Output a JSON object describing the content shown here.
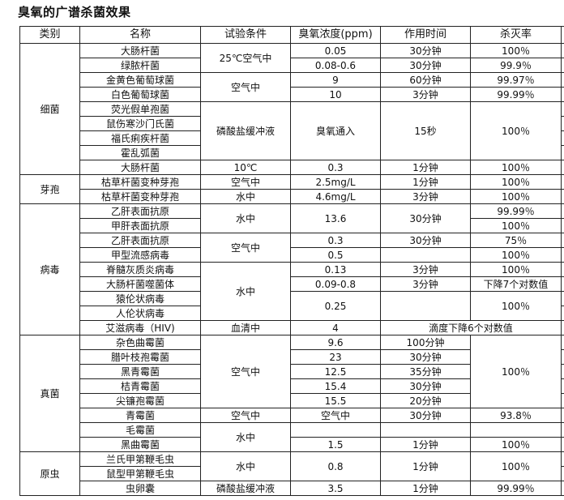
{
  "title": "臭氧的广谱杀菌效果",
  "table": {
    "headers": [
      "类别",
      "名称",
      "试验条件",
      "臭氧浓度(ppm)",
      "作用时间",
      "杀灭率",
      ""
    ],
    "groups": [
      {
        "category": "细菌",
        "rows": [
          [
            {
              "t": "大肠杆菌"
            },
            {
              "t": "25℃空气中",
              "rs": 2
            },
            {
              "t": "0.05"
            },
            {
              "t": "30分钟"
            },
            {
              "t": "100％"
            }
          ],
          [
            {
              "t": "绿脓杆菌"
            },
            {
              "t": "0.08-0.6"
            },
            {
              "t": "30分钟"
            },
            {
              "t": "99.9％"
            }
          ],
          [
            {
              "t": "金黄色葡萄球菌"
            },
            {
              "t": "空气中",
              "rs": 2
            },
            {
              "t": "9"
            },
            {
              "t": "60分钟"
            },
            {
              "t": "99.97％"
            }
          ],
          [
            {
              "t": "白色葡萄球菌"
            },
            {
              "t": "10"
            },
            {
              "t": "3分钟"
            },
            {
              "t": "99.99％"
            }
          ],
          [
            {
              "t": "荧光假单孢菌"
            },
            {
              "t": "磷酸盐缓冲液",
              "rs": 4
            },
            {
              "t": "臭氧通入",
              "rs": 4
            },
            {
              "t": "15秒",
              "rs": 4
            },
            {
              "t": "100％",
              "rs": 4
            }
          ],
          [
            {
              "t": "鼠伤寒沙门氏菌"
            }
          ],
          [
            {
              "t": "福氏痢疾杆菌"
            }
          ],
          [
            {
              "t": "霍乱弧菌"
            }
          ],
          [
            {
              "t": "大肠杆菌"
            },
            {
              "t": "10℃"
            },
            {
              "t": "0.3"
            },
            {
              "t": "1分钟"
            },
            {
              "t": "100％"
            }
          ]
        ]
      },
      {
        "category": "芽孢",
        "rows": [
          [
            {
              "t": "枯草杆菌变种芽孢"
            },
            {
              "t": "空气中"
            },
            {
              "t": "2.5mg/L"
            },
            {
              "t": "1分钟"
            },
            {
              "t": "100％"
            }
          ],
          [
            {
              "t": "枯草杆菌变种芽孢"
            },
            {
              "t": "水中"
            },
            {
              "t": "4.6mg/L"
            },
            {
              "t": "3分钟"
            },
            {
              "t": "100％"
            }
          ]
        ]
      },
      {
        "category": "病毒",
        "rows": [
          [
            {
              "t": "乙肝表面抗原"
            },
            {
              "t": "水中",
              "rs": 2
            },
            {
              "t": "13.6",
              "rs": 2
            },
            {
              "t": "30分钟",
              "rs": 2
            },
            {
              "t": "99.99％"
            }
          ],
          [
            {
              "t": "甲肝表面抗原"
            },
            {
              "t": "100％"
            }
          ],
          [
            {
              "t": "乙肝表面抗原"
            },
            {
              "t": "空气中",
              "rs": 2
            },
            {
              "t": "0.3"
            },
            {
              "t": "30分钟"
            },
            {
              "t": "75％"
            }
          ],
          [
            {
              "t": "甲型流感病毒"
            },
            {
              "t": "0.5"
            },
            {
              "t": ""
            },
            {
              "t": "100％"
            }
          ],
          [
            {
              "t": "脊髓灰质炎病毒"
            },
            {
              "t": "水中",
              "rs": 4
            },
            {
              "t": "0.13"
            },
            {
              "t": "3分钟"
            },
            {
              "t": "100％"
            }
          ],
          [
            {
              "t": "大肠杆菌噬菌体"
            },
            {
              "t": "0.09-0.8"
            },
            {
              "t": "3分钟"
            },
            {
              "t": "下降7个对数值"
            }
          ],
          [
            {
              "t": "猿伦状病毒"
            },
            {
              "t": "0.25",
              "rs": 2
            },
            {
              "t": "",
              "rs": 2
            },
            {
              "t": "100％",
              "rs": 2
            }
          ],
          [
            {
              "t": "人伦状病毒"
            }
          ],
          [
            {
              "t": "艾滋病毒（HIV)"
            },
            {
              "t": "血清中"
            },
            {
              "t": "4"
            },
            {
              "t": "滴度下降6个对数值",
              "cs": 2
            }
          ]
        ]
      },
      {
        "category": "真菌",
        "rows": [
          [
            {
              "t": "杂色曲霉菌"
            },
            {
              "t": "空气中",
              "rs": 5
            },
            {
              "t": "9.6"
            },
            {
              "t": "100分钟"
            },
            {
              "t": "100％",
              "rs": 5
            }
          ],
          [
            {
              "t": "腊叶枝孢霉菌"
            },
            {
              "t": "23"
            },
            {
              "t": "30分钟"
            }
          ],
          [
            {
              "t": "黑青霉菌"
            },
            {
              "t": "12.5"
            },
            {
              "t": "35分钟"
            }
          ],
          [
            {
              "t": "桔青霉菌"
            },
            {
              "t": "15.4"
            },
            {
              "t": "30分钟"
            }
          ],
          [
            {
              "t": "尖镰孢霉菌"
            },
            {
              "t": "15.5"
            },
            {
              "t": "20分钟"
            }
          ],
          [
            {
              "t": "青霉菌"
            },
            {
              "t": "空气中"
            },
            {
              "t": "空气中"
            },
            {
              "t": "30分钟"
            },
            {
              "t": "93.8％"
            }
          ],
          [
            {
              "t": "毛霉菌"
            },
            {
              "t": "水中",
              "rs": 2
            },
            {
              "t": ""
            },
            {
              "t": ""
            },
            {
              "t": ""
            }
          ],
          [
            {
              "t": "黑曲霉菌"
            },
            {
              "t": "1.5"
            },
            {
              "t": "1分钟"
            },
            {
              "t": "100％"
            }
          ]
        ]
      },
      {
        "category": "原虫",
        "rows": [
          [
            {
              "t": "兰氏甲第鞭毛虫"
            },
            {
              "t": "水中",
              "rs": 2
            },
            {
              "t": "0.8",
              "rs": 2
            },
            {
              "t": "1分钟",
              "rs": 2
            },
            {
              "t": "100％",
              "rs": 2
            }
          ],
          [
            {
              "t": "鼠型甲第鞭毛虫"
            }
          ],
          [
            {
              "t": "虫卵囊"
            },
            {
              "t": "磷酸盐缓冲液"
            },
            {
              "t": "3.5"
            },
            {
              "t": "1分钟"
            },
            {
              "t": "99.99％"
            }
          ]
        ]
      }
    ]
  }
}
